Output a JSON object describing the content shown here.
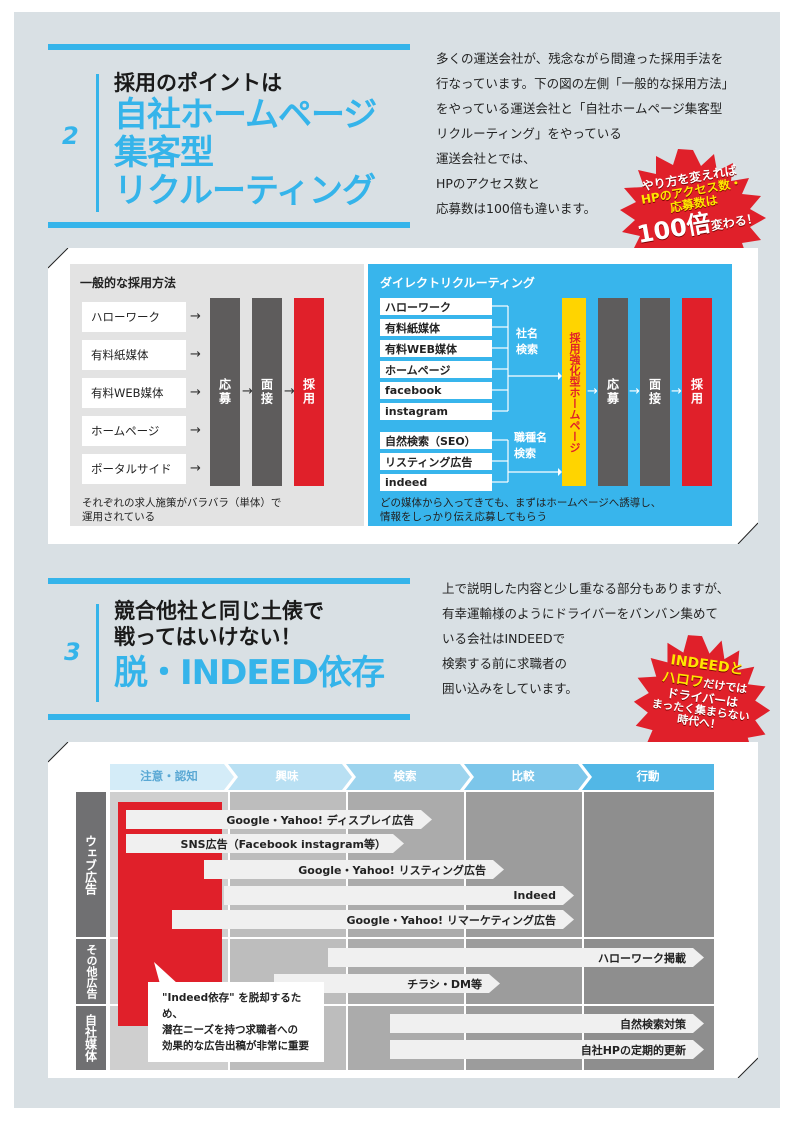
{
  "sec2": {
    "number": "2",
    "heading_small": "採用のポイントは",
    "heading_big": [
      "自社ホームページ",
      "集客型",
      "リクルーティング"
    ],
    "paragraph": [
      "多くの運送会社が、残念ながら間違った採用手法を",
      "行なっています。下の図の左側「一般的な採用方法」",
      "をやっている運送会社と「自社ホームページ集客型",
      "リクルーティング」をやっている",
      "運送会社とでは、",
      "HPのアクセス数と",
      "応募数は100倍も違います。"
    ],
    "burst": {
      "line1": "やり方を変えれば",
      "line2": "HPのアクセス数・",
      "line3": "応募数は",
      "line4a": "100倍",
      "line4b": "変わる！"
    }
  },
  "general": {
    "title": "一般的な採用方法",
    "items": [
      "ハローワーク",
      "有料紙媒体",
      "有料WEB媒体",
      "ホームページ",
      "ポータルサイド"
    ],
    "steps": [
      "応募",
      "面接",
      "採用"
    ],
    "caption": [
      "それぞれの求人施策がバラバラ（単体）で",
      "運用されている"
    ]
  },
  "direct": {
    "title": "ダイレクトリクルーティング",
    "group1": [
      "ハローワーク",
      "有料紙媒体",
      "有料WEB媒体",
      "ホームページ",
      "facebook",
      "instagram"
    ],
    "group1_label": [
      "社名",
      "検索"
    ],
    "group2": [
      "自然検索（SEO）",
      "リスティング広告",
      "indeed"
    ],
    "group2_label": [
      "職種名",
      "検索"
    ],
    "yellow": "採用強化型ホームページ",
    "steps": [
      "応募",
      "面接",
      "採用"
    ],
    "caption": [
      "どの媒体から入ってきても、まずはホームページへ誘導し、",
      "情報をしっかり伝え応募してもらう"
    ]
  },
  "sec3": {
    "number": "3",
    "heading_small": [
      "競合他社と同じ土俵で",
      "戦ってはいけない！"
    ],
    "heading_big": "脱・INDEED依存",
    "paragraph": [
      "上で説明した内容と少し重なる部分もありますが、",
      "有幸運輸様のようにドライバーをバンバン集めて",
      "いる会社はINDEEDで",
      "検索する前に求職者の",
      "囲い込みをしています。"
    ],
    "burst": {
      "line1": "INDEEDと",
      "line2a": "ハロワ",
      "line2b": "だけでは",
      "line3": "ドライバーは",
      "line4": "まったく集まらない",
      "line5": "時代へ！"
    }
  },
  "chart": {
    "stages": [
      "注意・認知",
      "興味",
      "検索",
      "比較",
      "行動"
    ],
    "rows": [
      "ウェブ広告",
      "その他広告",
      "自社媒体"
    ],
    "bars": [
      "Google・Yahoo! ディスプレイ広告",
      "SNS広告（Facebook instagram等）",
      "Google・Yahoo! リスティング広告",
      "Indeed",
      "Google・Yahoo! リマーケティング広告",
      "ハローワーク掲載",
      "チラシ・DM等",
      "自然検索対策",
      "自社HPの定期的更新"
    ],
    "note": [
      "\"Indeed依存\" を脱却するため、",
      "潜在ニーズを持つ求職者への",
      "効果的な広告出稿が非常に重要"
    ]
  },
  "colors": {
    "accent": "#35b4ea",
    "red": "#e0202a",
    "grey": "#5e5c5c",
    "yellow": "#ffd400"
  }
}
